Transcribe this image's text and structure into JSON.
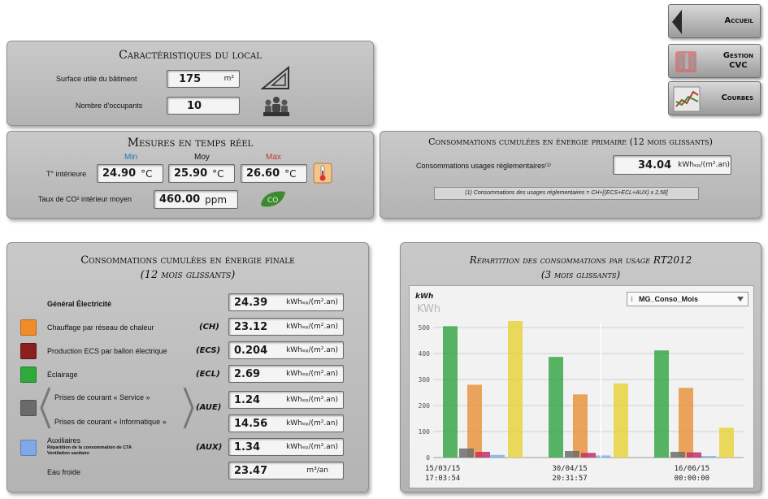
{
  "nav": {
    "accueil": "Accueil",
    "gestion_line1": "Gestion",
    "gestion_line2": "CVC",
    "courbes": "Courbes"
  },
  "local": {
    "title": "Caractéristiques du local",
    "surface_label": "Surface utile du bâtiment",
    "surface_value": "175",
    "surface_unit": "m²",
    "occupants_label": "Nombre d'occupants",
    "occupants_value": "10"
  },
  "mesures": {
    "title": "Mesures en temps réel",
    "min_label": "Min",
    "moy_label": "Moy",
    "max_label": "Max",
    "temp_label": "T° intérieure",
    "temp_min": "24.90",
    "temp_moy": "25.90",
    "temp_max": "26.60",
    "temp_unit": "°C",
    "co2_label": "Taux de CO² intérieur moyen",
    "co2_value": "460.00",
    "co2_unit": "ppm",
    "colors": {
      "min": "#1f77b4",
      "max": "#c0392b"
    }
  },
  "primaire": {
    "title": "Consommations cumulées en énergie primaire (12 mois glissants)",
    "label": "Consommations usages réglementaires⁽¹⁾",
    "value": "34.04",
    "unit": "kWhₑₚ/(m².an)",
    "note": "(1) Consommations des usages réglementaires = CH+[(ECS+ECL+AUX) x 2,58]"
  },
  "finale": {
    "title_line1": "Consommations cumulées en énergie finale",
    "title_line2": "(12 mois glissants)",
    "unit_ep": "kWhₑₚ/(m².an)",
    "general_label": "Général Électricité",
    "general_value": "24.39",
    "rows": [
      {
        "label": "Chauffage par réseau de chaleur",
        "code": "(CH)",
        "value": "23.12",
        "color": "#f28c28"
      },
      {
        "label": "Production ECS par ballon électrique",
        "code": "(ECS)",
        "value": "0.204",
        "color": "#8b1e1e"
      },
      {
        "label": "Éclairage",
        "code": "(ECL)",
        "value": "2.69",
        "color": "#2eaa3a"
      }
    ],
    "aue": {
      "label1": "Prises de courant « Service »",
      "label2": "Prises de courant « Informatique »",
      "code": "(AUE)",
      "value1": "1.24",
      "value2": "14.56",
      "color": "#6b6b6b"
    },
    "aux": {
      "label": "Auxiliaires",
      "sub1": "Répartition de la consommation de CTA",
      "sub2": "Ventilation sanitaire",
      "code": "(AUX)",
      "value": "1.34",
      "color": "#7fa8e8"
    },
    "eau": {
      "label": "Eau froide",
      "value": "23.47",
      "unit": "m³/an"
    }
  },
  "repartition": {
    "title_line1": "Répartition des consommations par usage RT2012",
    "title_line2": "(3 mois glissants)",
    "dropdown": "MG_Conso_Mois"
  },
  "chart_data": {
    "type": "bar",
    "ylabel": "kWh",
    "ylabel_ghost": "KWh",
    "ylim": [
      0,
      550
    ],
    "yticks": [
      0,
      100,
      200,
      300,
      400,
      500
    ],
    "grid": true,
    "x_labels": [
      {
        "line1": "15/03/15",
        "line2": "17:03:54"
      },
      {
        "line1": "30/04/15",
        "line2": "20:31:57"
      },
      {
        "line1": "16/06/15",
        "line2": "00:00:00"
      }
    ],
    "groups": [
      {
        "values": [
          505,
          35,
          22,
          10
        ],
        "extra": 280,
        "extra2": 525
      },
      {
        "values": [
          387,
          25,
          18,
          8
        ],
        "extra": 243,
        "extra2": 285
      },
      {
        "values": [
          412,
          22,
          20,
          6
        ],
        "extra": 268,
        "extra2": 115
      }
    ],
    "series_colors": {
      "eclairage": "#3aa84a",
      "aue": "#6d6d6d",
      "ecs": "#c0326a",
      "aux": "#7fb0e8",
      "chauffage": "#e89540",
      "total": "#e8d440"
    }
  }
}
